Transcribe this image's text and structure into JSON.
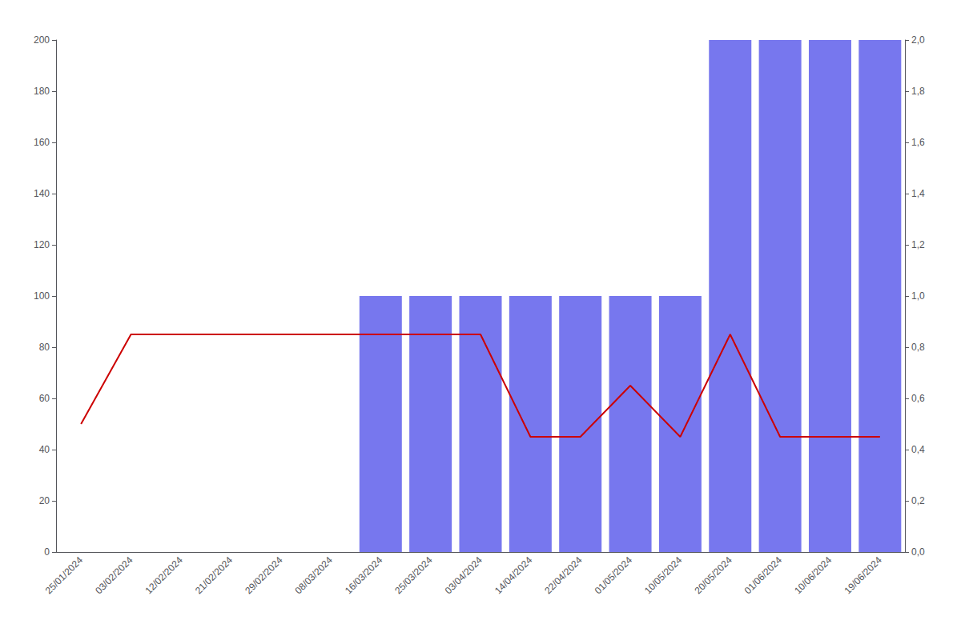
{
  "chart_data": {
    "type": "bar",
    "categories": [
      "25/01/2024",
      "03/02/2024",
      "12/02/2024",
      "21/02/2024",
      "29/02/2024",
      "08/03/2024",
      "16/03/2024",
      "25/03/2024",
      "03/04/2024",
      "14/04/2024",
      "22/04/2024",
      "01/05/2024",
      "10/05/2024",
      "20/05/2024",
      "01/06/2024",
      "10/06/2024",
      "19/06/2024"
    ],
    "series": [
      {
        "type": "bar",
        "color": "#7777ee",
        "values": [
          0,
          0,
          0,
          0,
          0,
          0,
          100,
          100,
          100,
          100,
          100,
          100,
          100,
          200,
          200,
          200,
          200
        ]
      },
      {
        "type": "line",
        "color": "#cc0000",
        "values": [
          50,
          85,
          85,
          85,
          85,
          85,
          85,
          85,
          85,
          45,
          45,
          65,
          45,
          85,
          45,
          45,
          45
        ]
      }
    ],
    "ylim": [
      0,
      200
    ],
    "yticks": [
      0,
      20,
      40,
      60,
      80,
      100,
      120,
      140,
      160,
      180,
      200
    ],
    "y2lim": [
      0,
      2.0
    ],
    "y2ticks": [
      {
        "value": 0,
        "label": "0,0"
      },
      {
        "value": 0.2,
        "label": "0,2"
      },
      {
        "value": 0.4,
        "label": "0,4"
      },
      {
        "value": 0.6,
        "label": "0,6"
      },
      {
        "value": 0.8,
        "label": "0,8"
      },
      {
        "value": 1.0,
        "label": "1,0"
      },
      {
        "value": 1.2,
        "label": "1,2"
      },
      {
        "value": 1.4,
        "label": "1,4"
      },
      {
        "value": 1.6,
        "label": "1,6"
      },
      {
        "value": 1.8,
        "label": "1,8"
      },
      {
        "value": 2.0,
        "label": "2,0"
      }
    ],
    "grid": false
  }
}
